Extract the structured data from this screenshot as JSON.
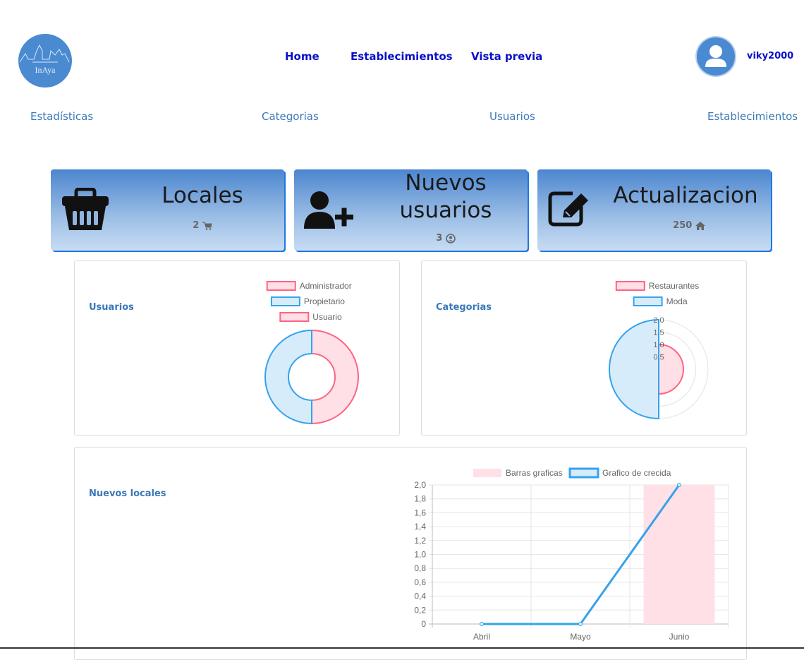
{
  "header": {
    "logo_text": "InAya",
    "nav": [
      "Home",
      "Establecimientos",
      "Vista previa"
    ],
    "username": "viky2000"
  },
  "subnav": [
    "Estadísticas",
    "Categorias",
    "Usuarios",
    "Establecimientos"
  ],
  "cards": [
    {
      "title": "Locales",
      "count": "2",
      "icon": "basket-icon",
      "count_icon": "cart-icon"
    },
    {
      "title_line1": "Nuevos",
      "title_line2": "usuarios",
      "count": "3",
      "icon": "user-plus-icon",
      "count_icon": "user-circle-icon"
    },
    {
      "title": "Actualizacion",
      "count": "250",
      "icon": "edit-icon",
      "count_icon": "home-icon"
    }
  ],
  "panels": {
    "usuarios": {
      "label": "Usuarios"
    },
    "categorias": {
      "label": "Categorias"
    },
    "nuevos_locales": {
      "label": "Nuevos locales"
    }
  },
  "colors": {
    "pink": "#ff6384",
    "pink_fill": "#ffe0e6",
    "blue": "#36a2eb",
    "blue_fill": "#d7ecfb"
  },
  "chart_data": [
    {
      "type": "pie",
      "variant": "doughnut",
      "categories": [
        "Administrador",
        "Propietario",
        "Usuario"
      ],
      "values": [
        1,
        1,
        0
      ],
      "legend": "top"
    },
    {
      "type": "pie",
      "variant": "polar-area",
      "categories": [
        "Restaurantes",
        "Moda"
      ],
      "values": [
        1,
        2
      ],
      "ticks": [
        "0.5",
        "1.0",
        "1.5",
        "2.0"
      ],
      "legend": "top"
    },
    {
      "type": "bar",
      "categories": [
        "Abril",
        "Mayo",
        "Junio"
      ],
      "series": [
        {
          "name": "Barras graficas",
          "type": "bar",
          "values": [
            0,
            0,
            2
          ]
        },
        {
          "name": "Grafico de crecida",
          "type": "line",
          "values": [
            0,
            0,
            2
          ]
        }
      ],
      "ylim": [
        0,
        2
      ],
      "yticks": [
        "0",
        "0,2",
        "0,4",
        "0,6",
        "0,8",
        "1,0",
        "1,2",
        "1,4",
        "1,6",
        "1,8",
        "2,0"
      ],
      "grid": true,
      "legend": "top"
    }
  ]
}
